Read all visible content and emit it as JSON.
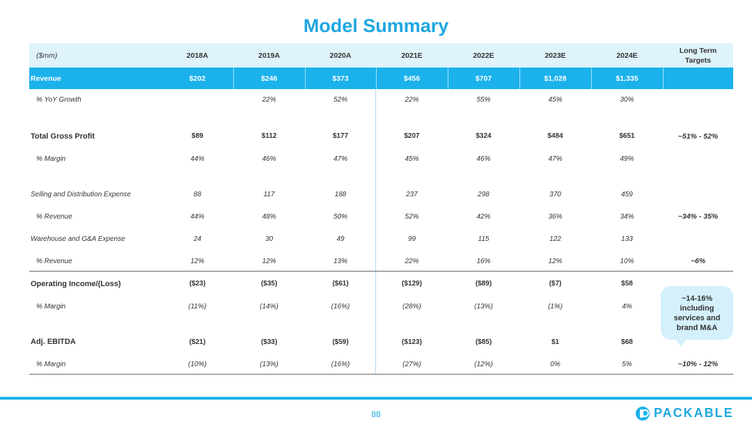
{
  "title": "Model Summary",
  "header": {
    "unit": "($mm)",
    "years": [
      "2018A",
      "2019A",
      "2020A",
      "2021E",
      "2022E",
      "2023E",
      "2024E"
    ],
    "long_term_line1": "Long Term",
    "long_term_line2": "Targets"
  },
  "rows": [
    {
      "label": "Revenue",
      "values": [
        "$202",
        "$246",
        "$373",
        "$456",
        "$707",
        "$1,028",
        "$1,335"
      ],
      "lt": ""
    },
    {
      "label": "% YoY Growth",
      "values": [
        "",
        "22%",
        "52%",
        "22%",
        "55%",
        "45%",
        "30%"
      ],
      "lt": ""
    },
    {
      "label": "Total Gross Profit",
      "values": [
        "$89",
        "$112",
        "$177",
        "$207",
        "$324",
        "$484",
        "$651"
      ],
      "lt": "~51% - 52%"
    },
    {
      "label": "% Margin",
      "values": [
        "44%",
        "46%",
        "47%",
        "45%",
        "46%",
        "47%",
        "49%"
      ],
      "lt": ""
    },
    {
      "label": "Selling and Distribution Expense",
      "values": [
        "88",
        "117",
        "188",
        "237",
        "298",
        "370",
        "459"
      ],
      "lt": ""
    },
    {
      "label": "% Revenue",
      "values": [
        "44%",
        "48%",
        "50%",
        "52%",
        "42%",
        "36%",
        "34%"
      ],
      "lt": "~34% - 35%"
    },
    {
      "label": "Warehouse and G&A Expense",
      "values": [
        "24",
        "30",
        "49",
        "99",
        "115",
        "122",
        "133"
      ],
      "lt": ""
    },
    {
      "label": "% Revenue",
      "values": [
        "12%",
        "12%",
        "13%",
        "22%",
        "16%",
        "12%",
        "10%"
      ],
      "lt": "~6%"
    },
    {
      "label": "Operating Income/(Loss)",
      "values": [
        "($23)",
        "($35)",
        "($61)",
        "($129)",
        "($89)",
        "($7)",
        "$58"
      ],
      "lt": ""
    },
    {
      "label": "% Margin",
      "values": [
        "(11%)",
        "(14%)",
        "(16%)",
        "(28%)",
        "(13%)",
        "(1%)",
        "4%"
      ],
      "lt": ""
    },
    {
      "label": "Adj. EBITDA",
      "values": [
        "($21)",
        "($33)",
        "($59)",
        "($123)",
        "($85)",
        "$1",
        "$68"
      ],
      "lt": ""
    },
    {
      "label": "% Margin",
      "values": [
        "(10%)",
        "(13%)",
        "(16%)",
        "(27%)",
        "(12%)",
        "0%",
        "5%"
      ],
      "lt": "~10% - 12%"
    }
  ],
  "callout": "~14-16% including services and brand M&A",
  "page_number": "88",
  "logo_text": "PACKABLE",
  "colors": {
    "accent": "#1bb2ec",
    "title": "#1ea7e0",
    "header_bg": "#dff3fb",
    "callout_bg": "#d4f0fb"
  }
}
